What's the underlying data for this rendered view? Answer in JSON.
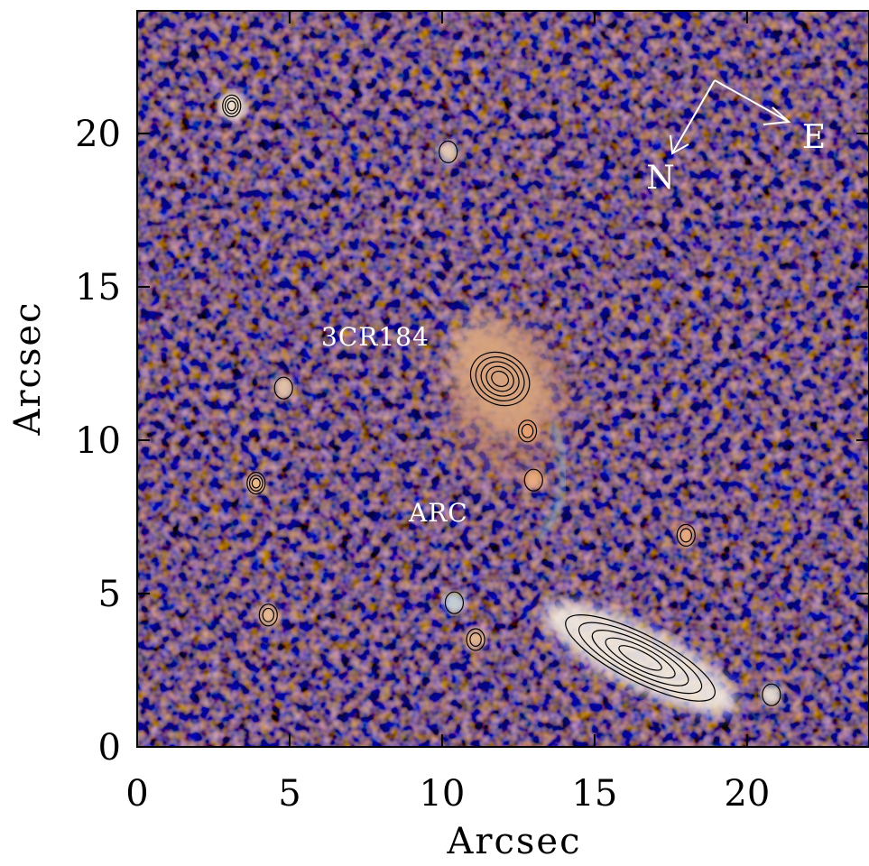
{
  "figure": {
    "x_axis": {
      "label": "Arcsec",
      "range": [
        0,
        24
      ],
      "ticks": [
        "0",
        "5",
        "10",
        "15",
        "20"
      ]
    },
    "y_axis": {
      "label": "Arcsec",
      "range": [
        0,
        24
      ],
      "ticks": [
        "0",
        "5",
        "10",
        "15",
        "20"
      ]
    },
    "background_palette": {
      "dark": "#1c1c24",
      "noise_orange": "#8a4a2a",
      "noise_blue": "#3c6a78"
    },
    "annotations": {
      "target": {
        "text": "3CR184",
        "x": 11.8,
        "y": 12.2
      },
      "arc": {
        "text": "ARC",
        "x": 9.8,
        "y": 7.5
      }
    },
    "compass": {
      "north": "N",
      "east": "E",
      "color": "#ffffff"
    },
    "sources": [
      {
        "x": 11.9,
        "y": 12.0,
        "kind": "radio-galaxy",
        "color": "#f2c89a",
        "contours": 5
      },
      {
        "x": 12.8,
        "y": 10.3,
        "kind": "compact",
        "color": "#e8a070",
        "contours": 2
      },
      {
        "x": 13.0,
        "y": 8.7,
        "kind": "compact",
        "color": "#f0b080",
        "contours": 1
      },
      {
        "x": 3.9,
        "y": 8.6,
        "kind": "compact",
        "color": "#f0c090",
        "contours": 3
      },
      {
        "x": 4.3,
        "y": 4.3,
        "kind": "compact",
        "color": "#f0c090",
        "contours": 2
      },
      {
        "x": 11.1,
        "y": 3.5,
        "kind": "compact",
        "color": "#f0c090",
        "contours": 2
      },
      {
        "x": 3.1,
        "y": 20.9,
        "kind": "star",
        "color": "#f4e6d2",
        "contours": 3
      },
      {
        "x": 10.2,
        "y": 19.4,
        "kind": "compact",
        "color": "#e8d0b8",
        "contours": 1
      },
      {
        "x": 4.8,
        "y": 11.7,
        "kind": "compact",
        "color": "#e8c8a8",
        "contours": 1
      },
      {
        "x": 10.4,
        "y": 4.7,
        "kind": "compact",
        "color": "#c8d8e0",
        "contours": 1
      },
      {
        "x": 18.0,
        "y": 6.9,
        "kind": "compact",
        "color": "#f0b080",
        "contours": 2
      },
      {
        "x": 20.8,
        "y": 1.7,
        "kind": "compact",
        "color": "#e8e0d0",
        "contours": 1
      },
      {
        "x": 16.5,
        "y": 2.9,
        "kind": "edge-on-galaxy",
        "color": "#f4ece0",
        "contours": 5
      }
    ]
  }
}
